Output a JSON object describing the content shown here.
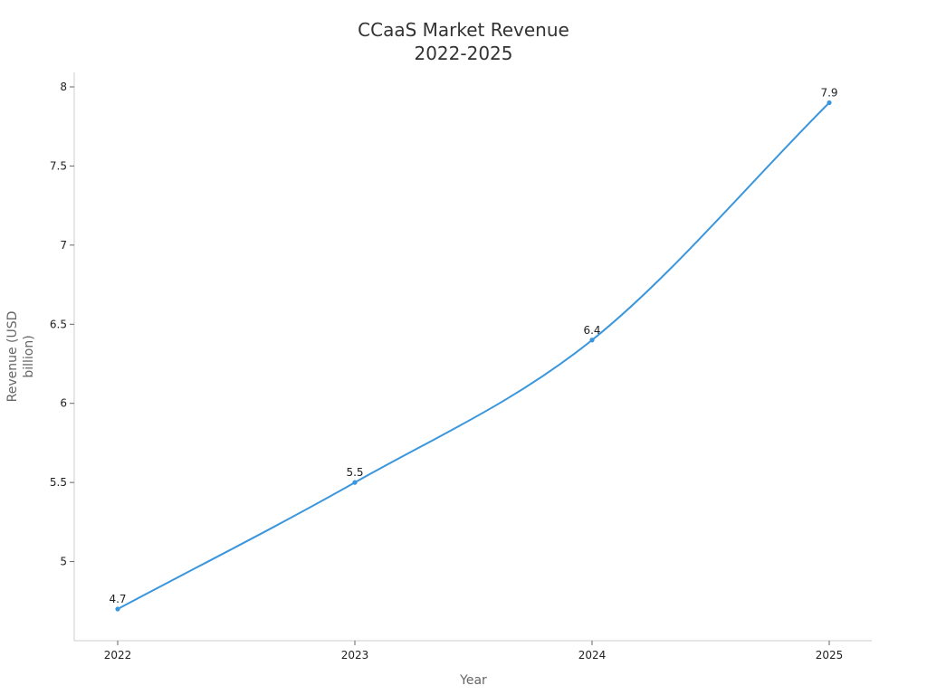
{
  "chart_data": {
    "type": "line",
    "title_lines": [
      "CCaaS Market Revenue",
      "2022-2025"
    ],
    "xlabel": "Year",
    "ylabel_lines": [
      "Revenue (USD",
      "billion)"
    ],
    "categories": [
      "2022",
      "2023",
      "2024",
      "2025"
    ],
    "series": [
      {
        "values": [
          4.7,
          5.5,
          6.4,
          7.9
        ],
        "data_labels": [
          "4.7",
          "5.5",
          "6.4",
          "7.9"
        ]
      }
    ],
    "yticks": [
      5,
      5.5,
      6,
      6.5,
      7,
      7.5,
      8
    ],
    "ytick_labels": [
      "5",
      "5.5",
      "6",
      "6.5",
      "7",
      "7.5",
      "8"
    ],
    "ylim": [
      4.5,
      8.1
    ],
    "grid": false,
    "legend": "none",
    "line_color": "#3a96dd"
  }
}
